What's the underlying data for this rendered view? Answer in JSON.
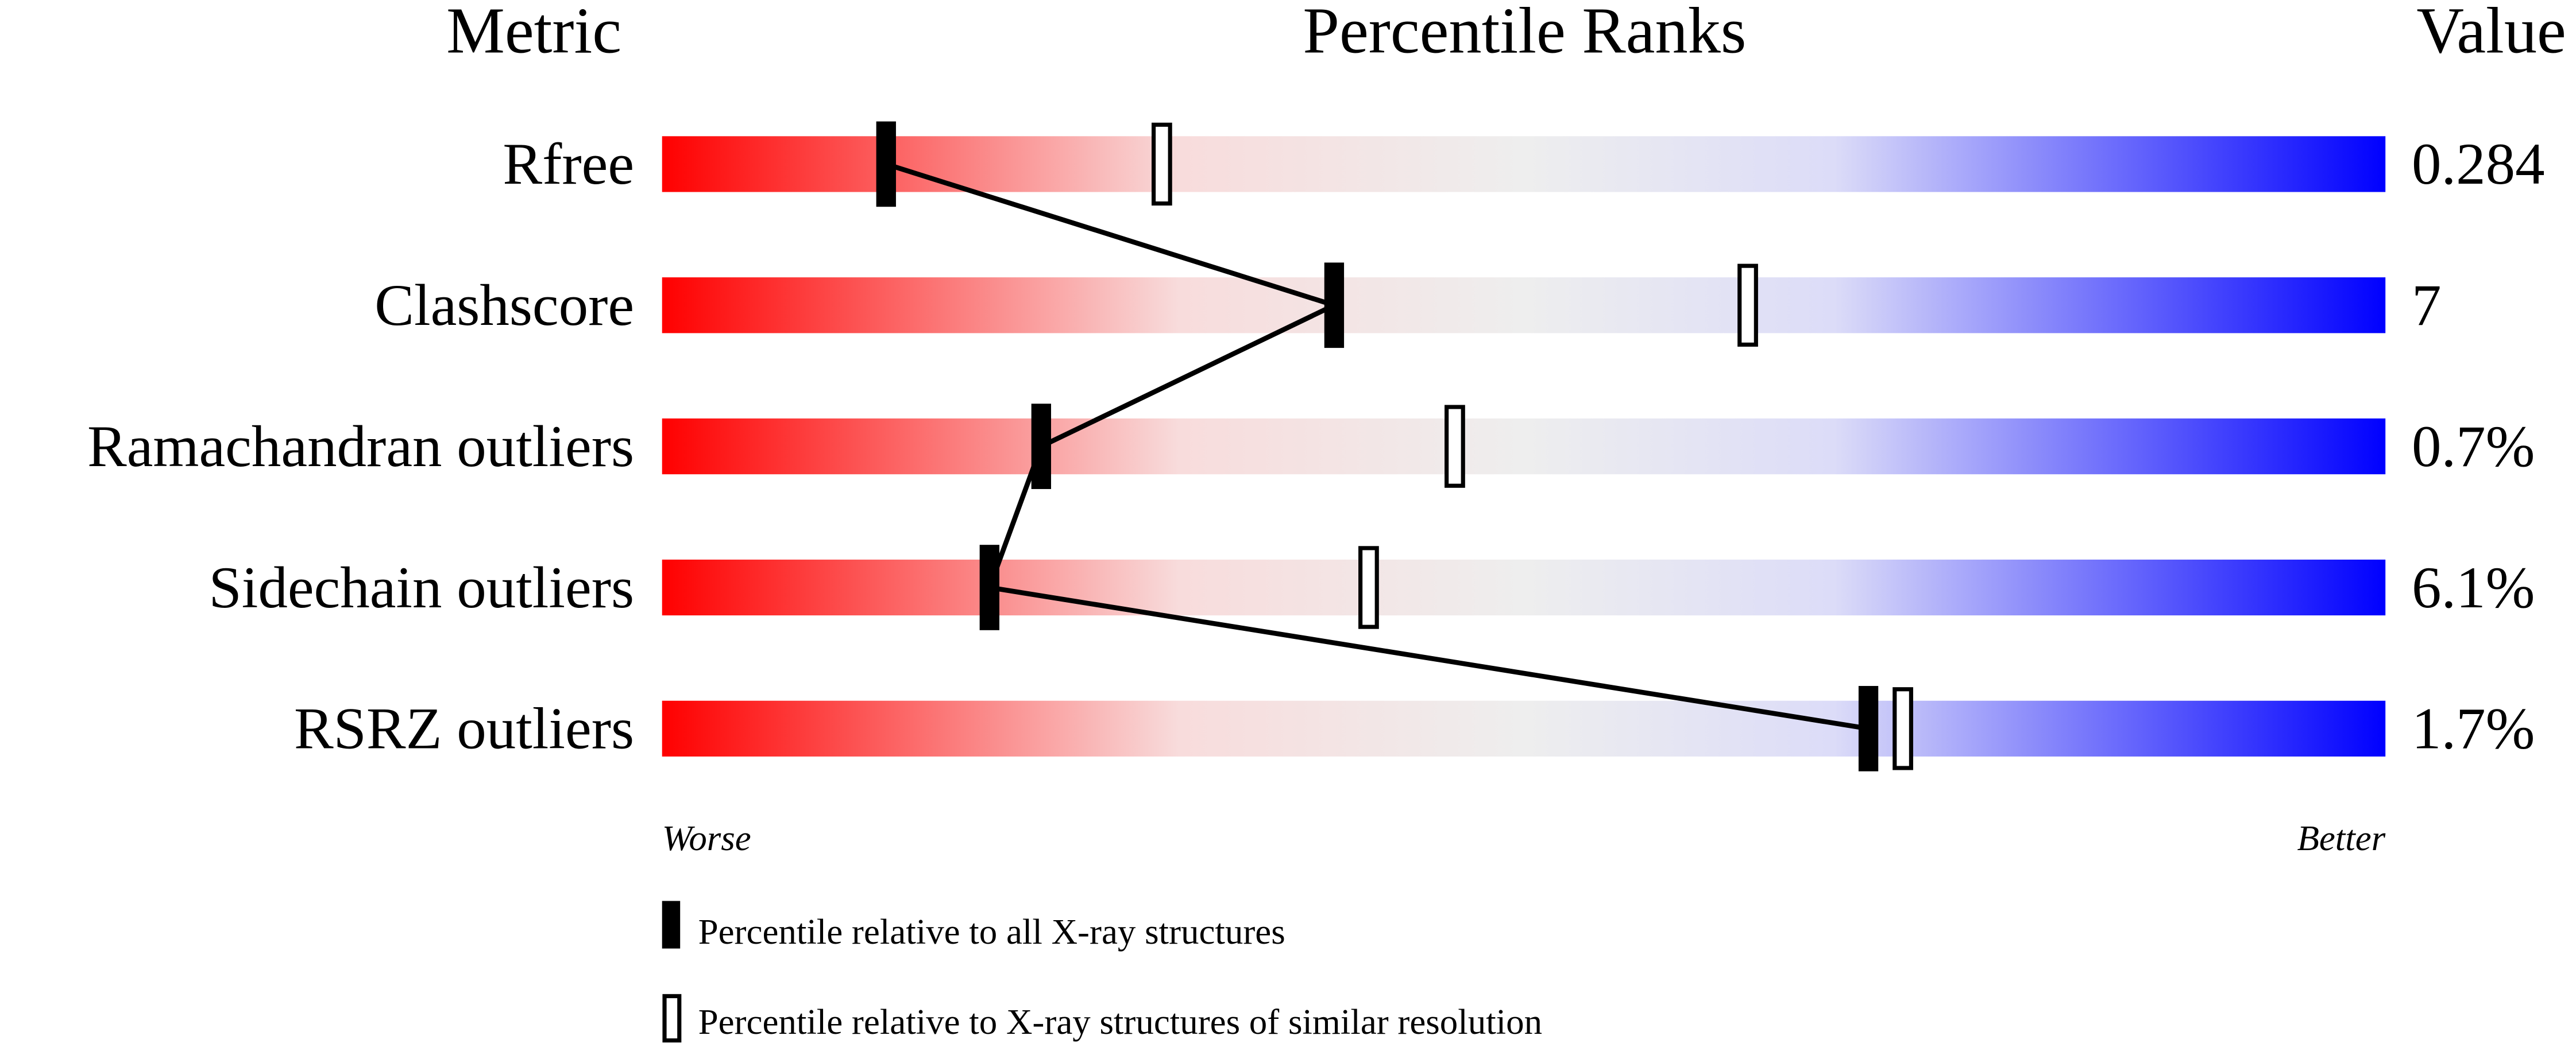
{
  "chart_data": {
    "type": "percentile-slider",
    "headers": {
      "metric": "Metric",
      "ranks": "Percentile Ranks",
      "value": "Value"
    },
    "axis": {
      "min_label": "Worse",
      "max_label": "Better",
      "range": [
        0,
        100
      ]
    },
    "gradient_colors": [
      "#ff0000",
      "#f8dcdc",
      "#eeeeee",
      "#dcdcf8",
      "#0000ff"
    ],
    "metrics": [
      {
        "name": "Rfree",
        "value": "0.284",
        "percentile_all": 13,
        "percentile_similar": 29
      },
      {
        "name": "Clashscore",
        "value": "7",
        "percentile_all": 39,
        "percentile_similar": 63
      },
      {
        "name": "Ramachandran outliers",
        "value": "0.7%",
        "percentile_all": 22,
        "percentile_similar": 46
      },
      {
        "name": "Sidechain outliers",
        "value": "6.1%",
        "percentile_all": 19,
        "percentile_similar": 41
      },
      {
        "name": "RSRZ outliers",
        "value": "1.7%",
        "percentile_all": 70,
        "percentile_similar": 72
      }
    ],
    "legend": [
      {
        "marker": "filled",
        "label": "Percentile relative to all X-ray structures"
      },
      {
        "marker": "open",
        "label": "Percentile relative to X-ray structures of similar resolution"
      }
    ]
  }
}
